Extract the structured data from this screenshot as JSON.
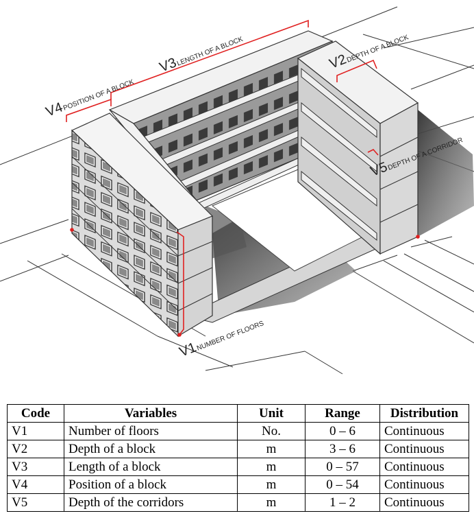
{
  "figure": {
    "labels": [
      {
        "code": "V1",
        "text": "NUMBER OF FLOORS"
      },
      {
        "code": "V2",
        "text": "DEPTH OF A BLOCK"
      },
      {
        "code": "V3",
        "text": "LENGTH OF A BLOCK"
      },
      {
        "code": "V4",
        "text": "POSITION OF A BLOCK"
      },
      {
        "code": "V5",
        "text": "DEPTH OF A CORRIDOR"
      }
    ],
    "colors": {
      "dimension": "#e02020",
      "facade": "#d9d9d9",
      "roof": "#eeeeee",
      "shadow": "#555555"
    }
  },
  "table": {
    "headers": [
      "Code",
      "Variables",
      "Unit",
      "Range",
      "Distribution"
    ],
    "rows": [
      [
        "V1",
        "Number of floors",
        "No.",
        "0 – 6",
        "Continuous"
      ],
      [
        "V2",
        "Depth of a block",
        "m",
        "3 – 6",
        "Continuous"
      ],
      [
        "V3",
        "Length of a block",
        "m",
        "0 – 57",
        "Continuous"
      ],
      [
        "V4",
        "Position of a block",
        "m",
        "0 – 54",
        "Continuous"
      ],
      [
        "V5",
        "Depth of the corridors",
        "m",
        "1 – 2",
        "Continuous"
      ]
    ]
  }
}
